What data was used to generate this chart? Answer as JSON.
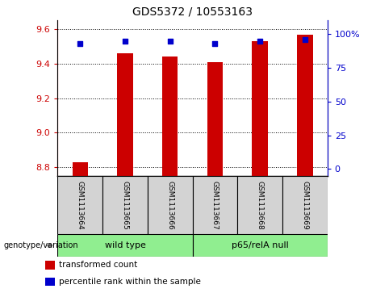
{
  "title": "GDS5372 / 10553163",
  "samples": [
    "GSM1113664",
    "GSM1113665",
    "GSM1113666",
    "GSM1113667",
    "GSM1113668",
    "GSM1113669"
  ],
  "transformed_counts": [
    8.83,
    9.46,
    9.44,
    9.41,
    9.53,
    9.57
  ],
  "percentile_ranks": [
    93,
    95,
    95,
    93,
    95,
    96
  ],
  "ylim_left": [
    8.75,
    9.65
  ],
  "ylim_right": [
    -5,
    110
  ],
  "yticks_left": [
    8.8,
    9.0,
    9.2,
    9.4,
    9.6
  ],
  "yticks_right": [
    0,
    25,
    50,
    75,
    100
  ],
  "ytick_labels_right": [
    "0",
    "25",
    "50",
    "75",
    "100%"
  ],
  "bar_color": "#cc0000",
  "dot_color": "#0000cc",
  "bar_bottom": 8.75,
  "group1_label": "wild type",
  "group2_label": "p65/relA null",
  "group_color": "#90ee90",
  "sample_box_color": "#d3d3d3",
  "legend_items": [
    {
      "color": "#cc0000",
      "label": "transformed count"
    },
    {
      "color": "#0000cc",
      "label": "percentile rank within the sample"
    }
  ],
  "background_color": "#ffffff",
  "tick_color_left": "#cc0000",
  "tick_color_right": "#0000cc",
  "genotype_label": "genotype/variation"
}
